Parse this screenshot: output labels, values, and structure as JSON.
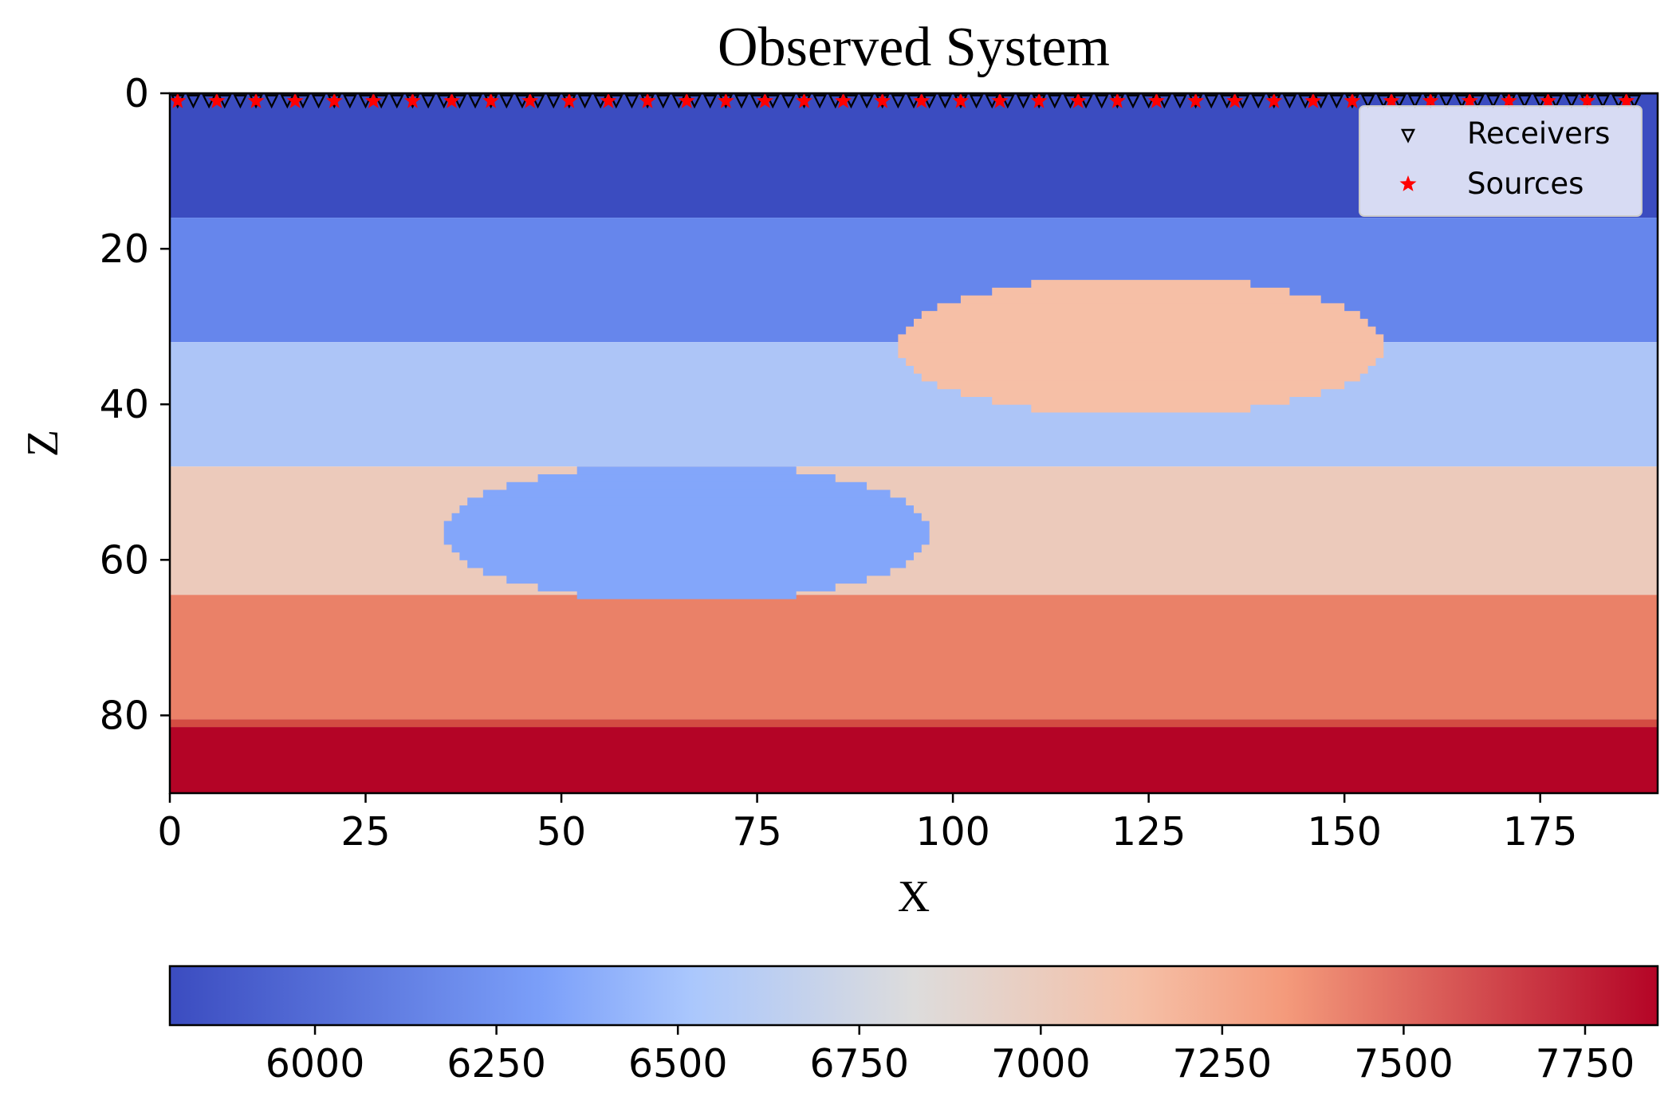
{
  "chart_data": {
    "type": "heatmap",
    "title": "Observed System",
    "xlabel": "X",
    "ylabel": "Z",
    "xlim": [
      0,
      190
    ],
    "ylim": [
      90,
      0
    ],
    "x_ticks": [
      0,
      25,
      50,
      75,
      100,
      125,
      150,
      175
    ],
    "y_ticks": [
      0,
      20,
      40,
      60,
      80
    ],
    "colormap": "coolwarm",
    "value_range": [
      5800,
      7850
    ],
    "colorbar_ticks": [
      6000,
      6250,
      6500,
      6750,
      7000,
      7250,
      7500,
      7750
    ],
    "layers": [
      {
        "z_top": 0,
        "z_bottom": 16,
        "value": 5800
      },
      {
        "z_top": 16,
        "z_bottom": 32,
        "value": 6150
      },
      {
        "z_top": 32,
        "z_bottom": 48,
        "value": 6630
      },
      {
        "z_top": 48,
        "z_bottom": 64.5,
        "value": 6980
      },
      {
        "z_top": 64.5,
        "z_bottom": 80.5,
        "value": 7430
      },
      {
        "z_top": 80.5,
        "z_bottom": 81.5,
        "value": 7620
      },
      {
        "z_top": 81.5,
        "z_bottom": 90,
        "value": 7850
      }
    ],
    "anomalies": [
      {
        "shape": "ellipse",
        "center_x": 124,
        "center_z": 32.5,
        "radius_x": 31,
        "radius_z": 9,
        "value": 7080
      },
      {
        "shape": "ellipse",
        "center_x": 66,
        "center_z": 56.5,
        "radius_x": 31,
        "radius_z": 9,
        "value": 6370
      }
    ],
    "series": [
      {
        "name": "Receivers",
        "marker": "triangle-down",
        "color": "#000000",
        "z": 1,
        "x_start": 1,
        "x_end": 188,
        "x_step": 2
      },
      {
        "name": "Sources",
        "marker": "star",
        "color": "#ff0000",
        "z": 1,
        "x_start": 1,
        "x_end": 186,
        "x_step": 5
      }
    ],
    "legend": {
      "position": "top-right",
      "entries": [
        "Receivers",
        "Sources"
      ]
    }
  }
}
